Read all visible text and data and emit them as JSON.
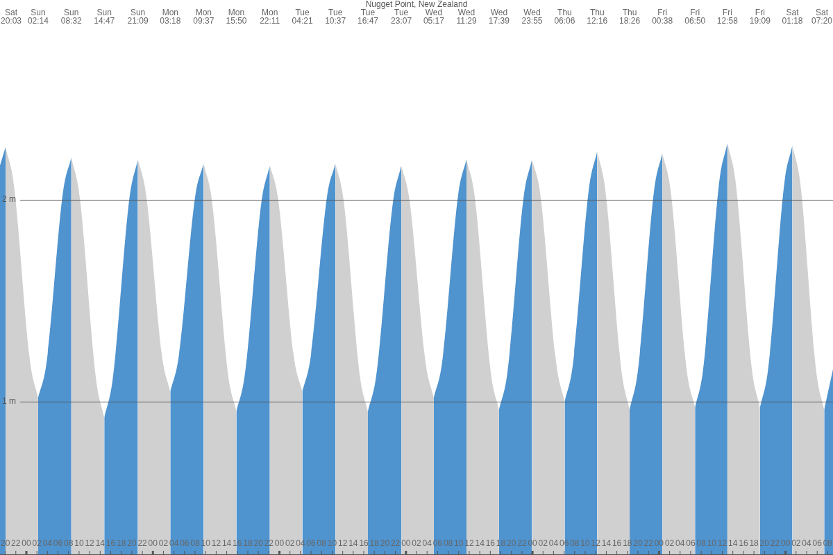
{
  "chart_data": {
    "type": "area",
    "title": "Nugget Point, New Zealand",
    "xlim": [
      19,
      177
    ],
    "xticks": [
      {
        "value": 20,
        "label": "20"
      },
      {
        "value": 22,
        "label": "22"
      },
      {
        "value": 24,
        "label": "00"
      },
      {
        "value": 26,
        "label": "02"
      },
      {
        "value": 28,
        "label": "04"
      },
      {
        "value": 30,
        "label": "06"
      },
      {
        "value": 32,
        "label": "08"
      },
      {
        "value": 34,
        "label": "10"
      },
      {
        "value": 36,
        "label": "12"
      },
      {
        "value": 38,
        "label": "14"
      },
      {
        "value": 40,
        "label": "16"
      },
      {
        "value": 42,
        "label": "18"
      },
      {
        "value": 44,
        "label": "20"
      },
      {
        "value": 46,
        "label": "22"
      },
      {
        "value": 48,
        "label": "00"
      },
      {
        "value": 50,
        "label": "02"
      },
      {
        "value": 52,
        "label": "04"
      },
      {
        "value": 54,
        "label": "06"
      },
      {
        "value": 56,
        "label": "08"
      },
      {
        "value": 58,
        "label": "10"
      },
      {
        "value": 60,
        "label": "12"
      },
      {
        "value": 62,
        "label": "14"
      },
      {
        "value": 64,
        "label": "16"
      },
      {
        "value": 66,
        "label": "18"
      },
      {
        "value": 68,
        "label": "20"
      },
      {
        "value": 70,
        "label": "22"
      },
      {
        "value": 72,
        "label": "00"
      },
      {
        "value": 74,
        "label": "02"
      },
      {
        "value": 76,
        "label": "04"
      },
      {
        "value": 78,
        "label": "06"
      },
      {
        "value": 80,
        "label": "08"
      },
      {
        "value": 82,
        "label": "10"
      },
      {
        "value": 84,
        "label": "12"
      },
      {
        "value": 86,
        "label": "14"
      },
      {
        "value": 88,
        "label": "16"
      },
      {
        "value": 90,
        "label": "18"
      },
      {
        "value": 92,
        "label": "20"
      },
      {
        "value": 94,
        "label": "22"
      },
      {
        "value": 96,
        "label": "00"
      },
      {
        "value": 98,
        "label": "02"
      },
      {
        "value": 100,
        "label": "04"
      },
      {
        "value": 102,
        "label": "06"
      },
      {
        "value": 104,
        "label": "08"
      },
      {
        "value": 106,
        "label": "10"
      },
      {
        "value": 108,
        "label": "12"
      },
      {
        "value": 110,
        "label": "14"
      },
      {
        "value": 112,
        "label": "16"
      },
      {
        "value": 114,
        "label": "18"
      },
      {
        "value": 116,
        "label": "20"
      },
      {
        "value": 118,
        "label": "22"
      },
      {
        "value": 120,
        "label": "00"
      },
      {
        "value": 122,
        "label": "02"
      },
      {
        "value": 124,
        "label": "04"
      },
      {
        "value": 126,
        "label": "06"
      },
      {
        "value": 128,
        "label": "08"
      },
      {
        "value": 130,
        "label": "10"
      },
      {
        "value": 132,
        "label": "12"
      },
      {
        "value": 134,
        "label": "14"
      },
      {
        "value": 136,
        "label": "16"
      },
      {
        "value": 138,
        "label": "18"
      },
      {
        "value": 140,
        "label": "20"
      },
      {
        "value": 142,
        "label": "22"
      },
      {
        "value": 144,
        "label": "00"
      },
      {
        "value": 146,
        "label": "02"
      },
      {
        "value": 148,
        "label": "04"
      },
      {
        "value": 150,
        "label": "06"
      },
      {
        "value": 152,
        "label": "08"
      },
      {
        "value": 154,
        "label": "10"
      },
      {
        "value": 156,
        "label": "12"
      },
      {
        "value": 158,
        "label": "14"
      },
      {
        "value": 160,
        "label": "16"
      },
      {
        "value": 162,
        "label": "18"
      },
      {
        "value": 164,
        "label": "20"
      },
      {
        "value": 166,
        "label": "22"
      },
      {
        "value": 168,
        "label": "00"
      },
      {
        "value": 170,
        "label": "02"
      },
      {
        "value": 172,
        "label": "04"
      },
      {
        "value": 174,
        "label": "06"
      },
      {
        "value": 176,
        "label": "08"
      }
    ],
    "ylim": [
      0.24,
      2.99
    ],
    "yticks": [
      {
        "value": 1,
        "label": "1 m"
      },
      {
        "value": 2,
        "label": "2 m"
      }
    ],
    "grid": "y",
    "annotations": [
      "Sat 20:03",
      "Sun 02:14",
      "Sun 08:32",
      "Sun 14:47",
      "Sun 21:09",
      "Mon 03:18",
      "Mon 09:37",
      "Mon 15:50",
      "Mon 22:11",
      "Tue 04:21",
      "Tue 10:37",
      "Tue 16:47",
      "Tue 23:07",
      "Wed 05:17",
      "Wed 11:29",
      "Wed 17:39",
      "Wed 23:55",
      "Thu 06:06",
      "Thu 12:16",
      "Thu 18:26",
      "Fri 00:38",
      "Fri 06:50",
      "Fri 12:58",
      "Fri 19:09",
      "Sat 01:18",
      "Sat 07:20"
    ],
    "series": [
      {
        "color": "#4f93cf",
        "x": [
          19,
          20.05,
          23.14,
          26.23,
          27.81,
          30.96,
          32.53,
          35.66,
          38.78,
          40.37,
          43.56,
          45.15,
          48.23,
          51.3,
          52.88,
          56.04,
          57.62,
          60.73,
          63.83,
          65.42,
          68.59,
          70.18,
          73.27,
          76.35,
          77.92,
          81.05,
          82.62,
          85.7,
          88.78,
          90.37,
          93.54,
          95.12,
          98.2,
          101.28,
          102.83,
          105.93,
          107.48,
          110.57,
          113.65,
          115.22,
          118.35,
          119.92,
          123.01,
          126.1,
          127.64,
          130.73,
          132.27,
          135.35,
          138.43,
          139.98,
          143.08,
          144.63,
          147.73,
          150.83,
          152.37,
          155.43,
          156.97,
          160.06,
          163.15,
          164.69,
          167.76,
          169.3,
          172.32,
          175.33,
          177
        ],
        "values": [
          2.17,
          2.26,
          null,
          1.02,
          1.19,
          2.04,
          2.21,
          null,
          0.92,
          1.11,
          2.01,
          2.2,
          null,
          1.05,
          1.22,
          2.02,
          2.18,
          null,
          0.95,
          1.13,
          1.99,
          2.17,
          null,
          1.05,
          1.22,
          2.02,
          2.18,
          null,
          0.95,
          1.13,
          1.99,
          2.17,
          null,
          1.02,
          1.19,
          2.03,
          2.2,
          null,
          0.96,
          1.14,
          2.02,
          2.2,
          null,
          1.0,
          1.18,
          2.06,
          2.24,
          null,
          0.96,
          1.15,
          2.05,
          2.23,
          null,
          0.97,
          1.16,
          2.09,
          2.28,
          null,
          0.97,
          1.16,
          2.08,
          2.27,
          null,
          0.96,
          1.16
        ]
      },
      {
        "color": "#d0d0d0",
        "x": [
          20.05,
          21.6,
          24.69,
          26.23,
          29.38,
          32.53,
          34.09,
          37.22,
          38.78,
          41.97,
          45.15,
          46.69,
          49.76,
          51.3,
          54.46,
          57.62,
          59.17,
          62.28,
          63.83,
          67.01,
          70.18,
          71.72,
          74.81,
          76.35,
          79.49,
          82.62,
          84.16,
          87.24,
          88.78,
          91.95,
          95.12,
          96.66,
          99.74,
          101.28,
          104.38,
          107.48,
          109.02,
          112.11,
          113.65,
          116.79,
          119.92,
          121.47,
          124.56,
          126.1,
          129.19,
          132.27,
          133.81,
          136.89,
          138.43,
          141.53,
          144.63,
          146.18,
          149.28,
          150.83,
          153.9,
          156.97,
          158.52,
          161.61,
          163.15,
          166.23,
          169.3,
          170.81,
          173.82,
          175.33
        ],
        "values": [
          2.26,
          2.08,
          1.2,
          1.02,
          null,
          2.21,
          2.02,
          1.11,
          0.92,
          null,
          2.2,
          2.03,
          1.22,
          1.05,
          null,
          2.18,
          2.0,
          1.13,
          0.95,
          null,
          2.17,
          2.01,
          1.21,
          1.05,
          null,
          2.18,
          2.0,
          1.13,
          0.95,
          null,
          2.17,
          2.0,
          1.19,
          1.02,
          null,
          2.2,
          2.02,
          1.14,
          0.96,
          null,
          2.2,
          2.03,
          1.18,
          1.0,
          null,
          2.24,
          2.05,
          1.15,
          0.96,
          null,
          2.23,
          2.05,
          1.15,
          0.97,
          null,
          2.28,
          2.09,
          1.16,
          0.97,
          null,
          2.27,
          2.08,
          1.15,
          0.96
        ]
      }
    ]
  }
}
